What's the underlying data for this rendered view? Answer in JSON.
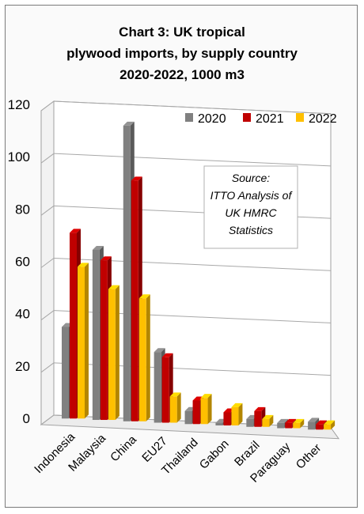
{
  "chart_data": {
    "type": "bar",
    "title_lines": [
      "Chart 3: UK tropical",
      "plywood imports, by supply country",
      "2020-2022, 1000 m3"
    ],
    "categories": [
      "Indonesia",
      "Malaysia",
      "China",
      "EU27",
      "Thailand",
      "Gabon",
      "Brazil",
      "Paraguay",
      "Other"
    ],
    "series": [
      {
        "name": "2020",
        "color": "#808080",
        "values": [
          35,
          65,
          113,
          27,
          5,
          1,
          3,
          2,
          3
        ]
      },
      {
        "name": "2021",
        "color": "#c00000",
        "values": [
          71,
          61,
          92,
          25,
          9,
          5,
          6,
          2,
          2
        ]
      },
      {
        "name": "2022",
        "color": "#ffc000",
        "values": [
          58,
          50,
          47,
          10,
          10,
          7,
          3,
          2,
          2
        ]
      }
    ],
    "ylim": [
      0,
      120
    ],
    "yticks": [
      "0",
      "20",
      "40",
      "60",
      "80",
      "100",
      "120"
    ],
    "source_lines": [
      "Source:",
      "ITTO Analysis of",
      "UK HMRC",
      "Statistics"
    ],
    "legend_position": "top-right",
    "grid": true
  }
}
